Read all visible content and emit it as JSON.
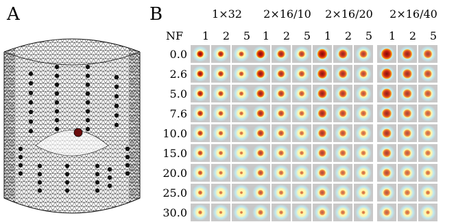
{
  "figure": {
    "panel_a_label": "A",
    "panel_b_label": "B",
    "nf_label": "NF",
    "groups": [
      {
        "label": "1×32",
        "subcols": [
          "1",
          "2",
          "5"
        ],
        "base_size": 0.62
      },
      {
        "label": "2×16/10",
        "subcols": [
          "1",
          "2",
          "5"
        ],
        "base_size": 0.78
      },
      {
        "label": "2×16/20",
        "subcols": [
          "1",
          "2",
          "5"
        ],
        "base_size": 0.9
      },
      {
        "label": "2×16/40",
        "subcols": [
          "1",
          "2",
          "5"
        ],
        "base_size": 1.0
      }
    ],
    "rows": [
      "0.0",
      "2.6",
      "5.0",
      "7.6",
      "10.0",
      "15.0",
      "20.0",
      "25.0",
      "30.0"
    ],
    "colors": {
      "background_tile": "#c8c8c8",
      "halo_cyan": "#bfe8ef",
      "halo_yellow": "#fdf6b5",
      "core_red": "#cc1d0e",
      "core_dark": "#7a0d07",
      "mesh_line": "#111111",
      "electrode": "#111111",
      "source_marker": "#6b0d0d"
    }
  }
}
